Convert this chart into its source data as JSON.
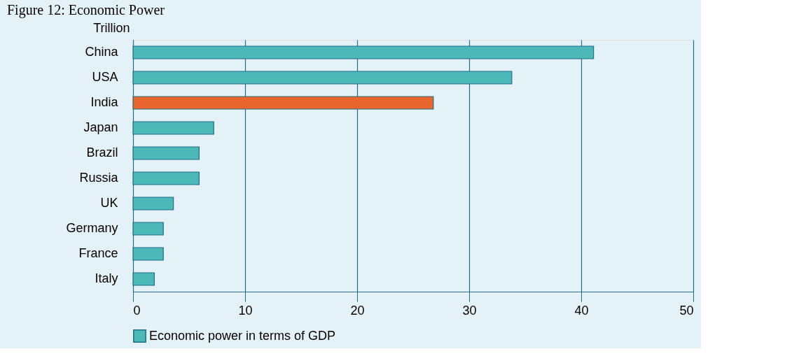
{
  "chart_data": {
    "type": "bar",
    "orientation": "horizontal",
    "title": "Figure 12: Economic Power",
    "ylabel": "Trillion",
    "categories": [
      "China",
      "USA",
      "India",
      "Japan",
      "Brazil",
      "Russia",
      "UK",
      "Germany",
      "France",
      "Italy"
    ],
    "series": [
      {
        "name": "Economic power in terms of GDP",
        "color": "#4cb8b8",
        "colors": [
          "#4cb8b8",
          "#4cb8b8",
          "#e8652e",
          "#4cb8b8",
          "#4cb8b8",
          "#4cb8b8",
          "#4cb8b8",
          "#4cb8b8",
          "#4cb8b8",
          "#4cb8b8"
        ],
        "values": [
          41.1,
          33.8,
          26.8,
          7.2,
          5.9,
          5.9,
          3.6,
          2.7,
          2.7,
          1.9
        ]
      }
    ],
    "xlim": [
      0,
      50
    ],
    "xticks": [
      0,
      10,
      20,
      30,
      40,
      50
    ],
    "grid": "x",
    "legend": "bottom"
  }
}
